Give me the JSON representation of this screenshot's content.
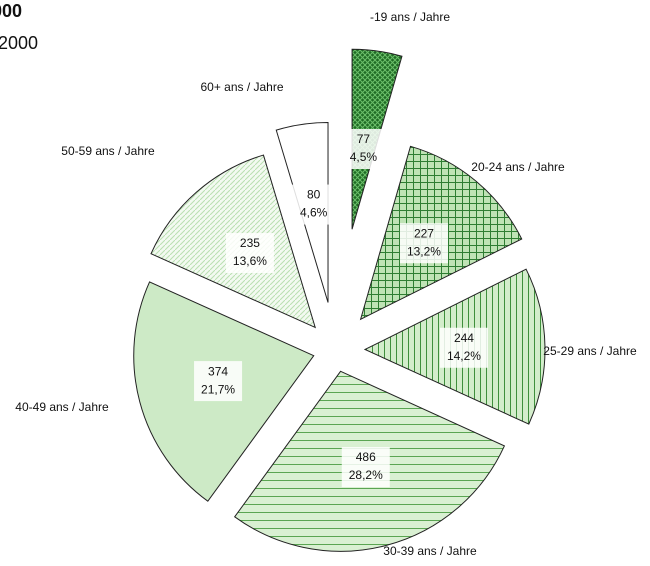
{
  "chart_data": {
    "type": "pie",
    "title": "000",
    "subtitle": "2000",
    "categories": [
      "-19 ans / Jahre",
      "20-24 ans / Jahre",
      "25-29 ans / Jahre",
      "30-39 ans / Jahre",
      "40-49 ans / Jahre",
      "50-59 ans / Jahre",
      "60+ ans / Jahre"
    ],
    "values": [
      77,
      227,
      244,
      486,
      374,
      235,
      80
    ],
    "shares": [
      "4,5%",
      "13,2%",
      "14,2%",
      "28,2%",
      "21,7%",
      "13,6%",
      "4,6%"
    ],
    "colors": [
      "#2f7d32",
      "#4f9f4a",
      "#6fb765",
      "#8fcb84",
      "#cdeac6",
      "#e8f5e4",
      "#ffffff"
    ]
  }
}
